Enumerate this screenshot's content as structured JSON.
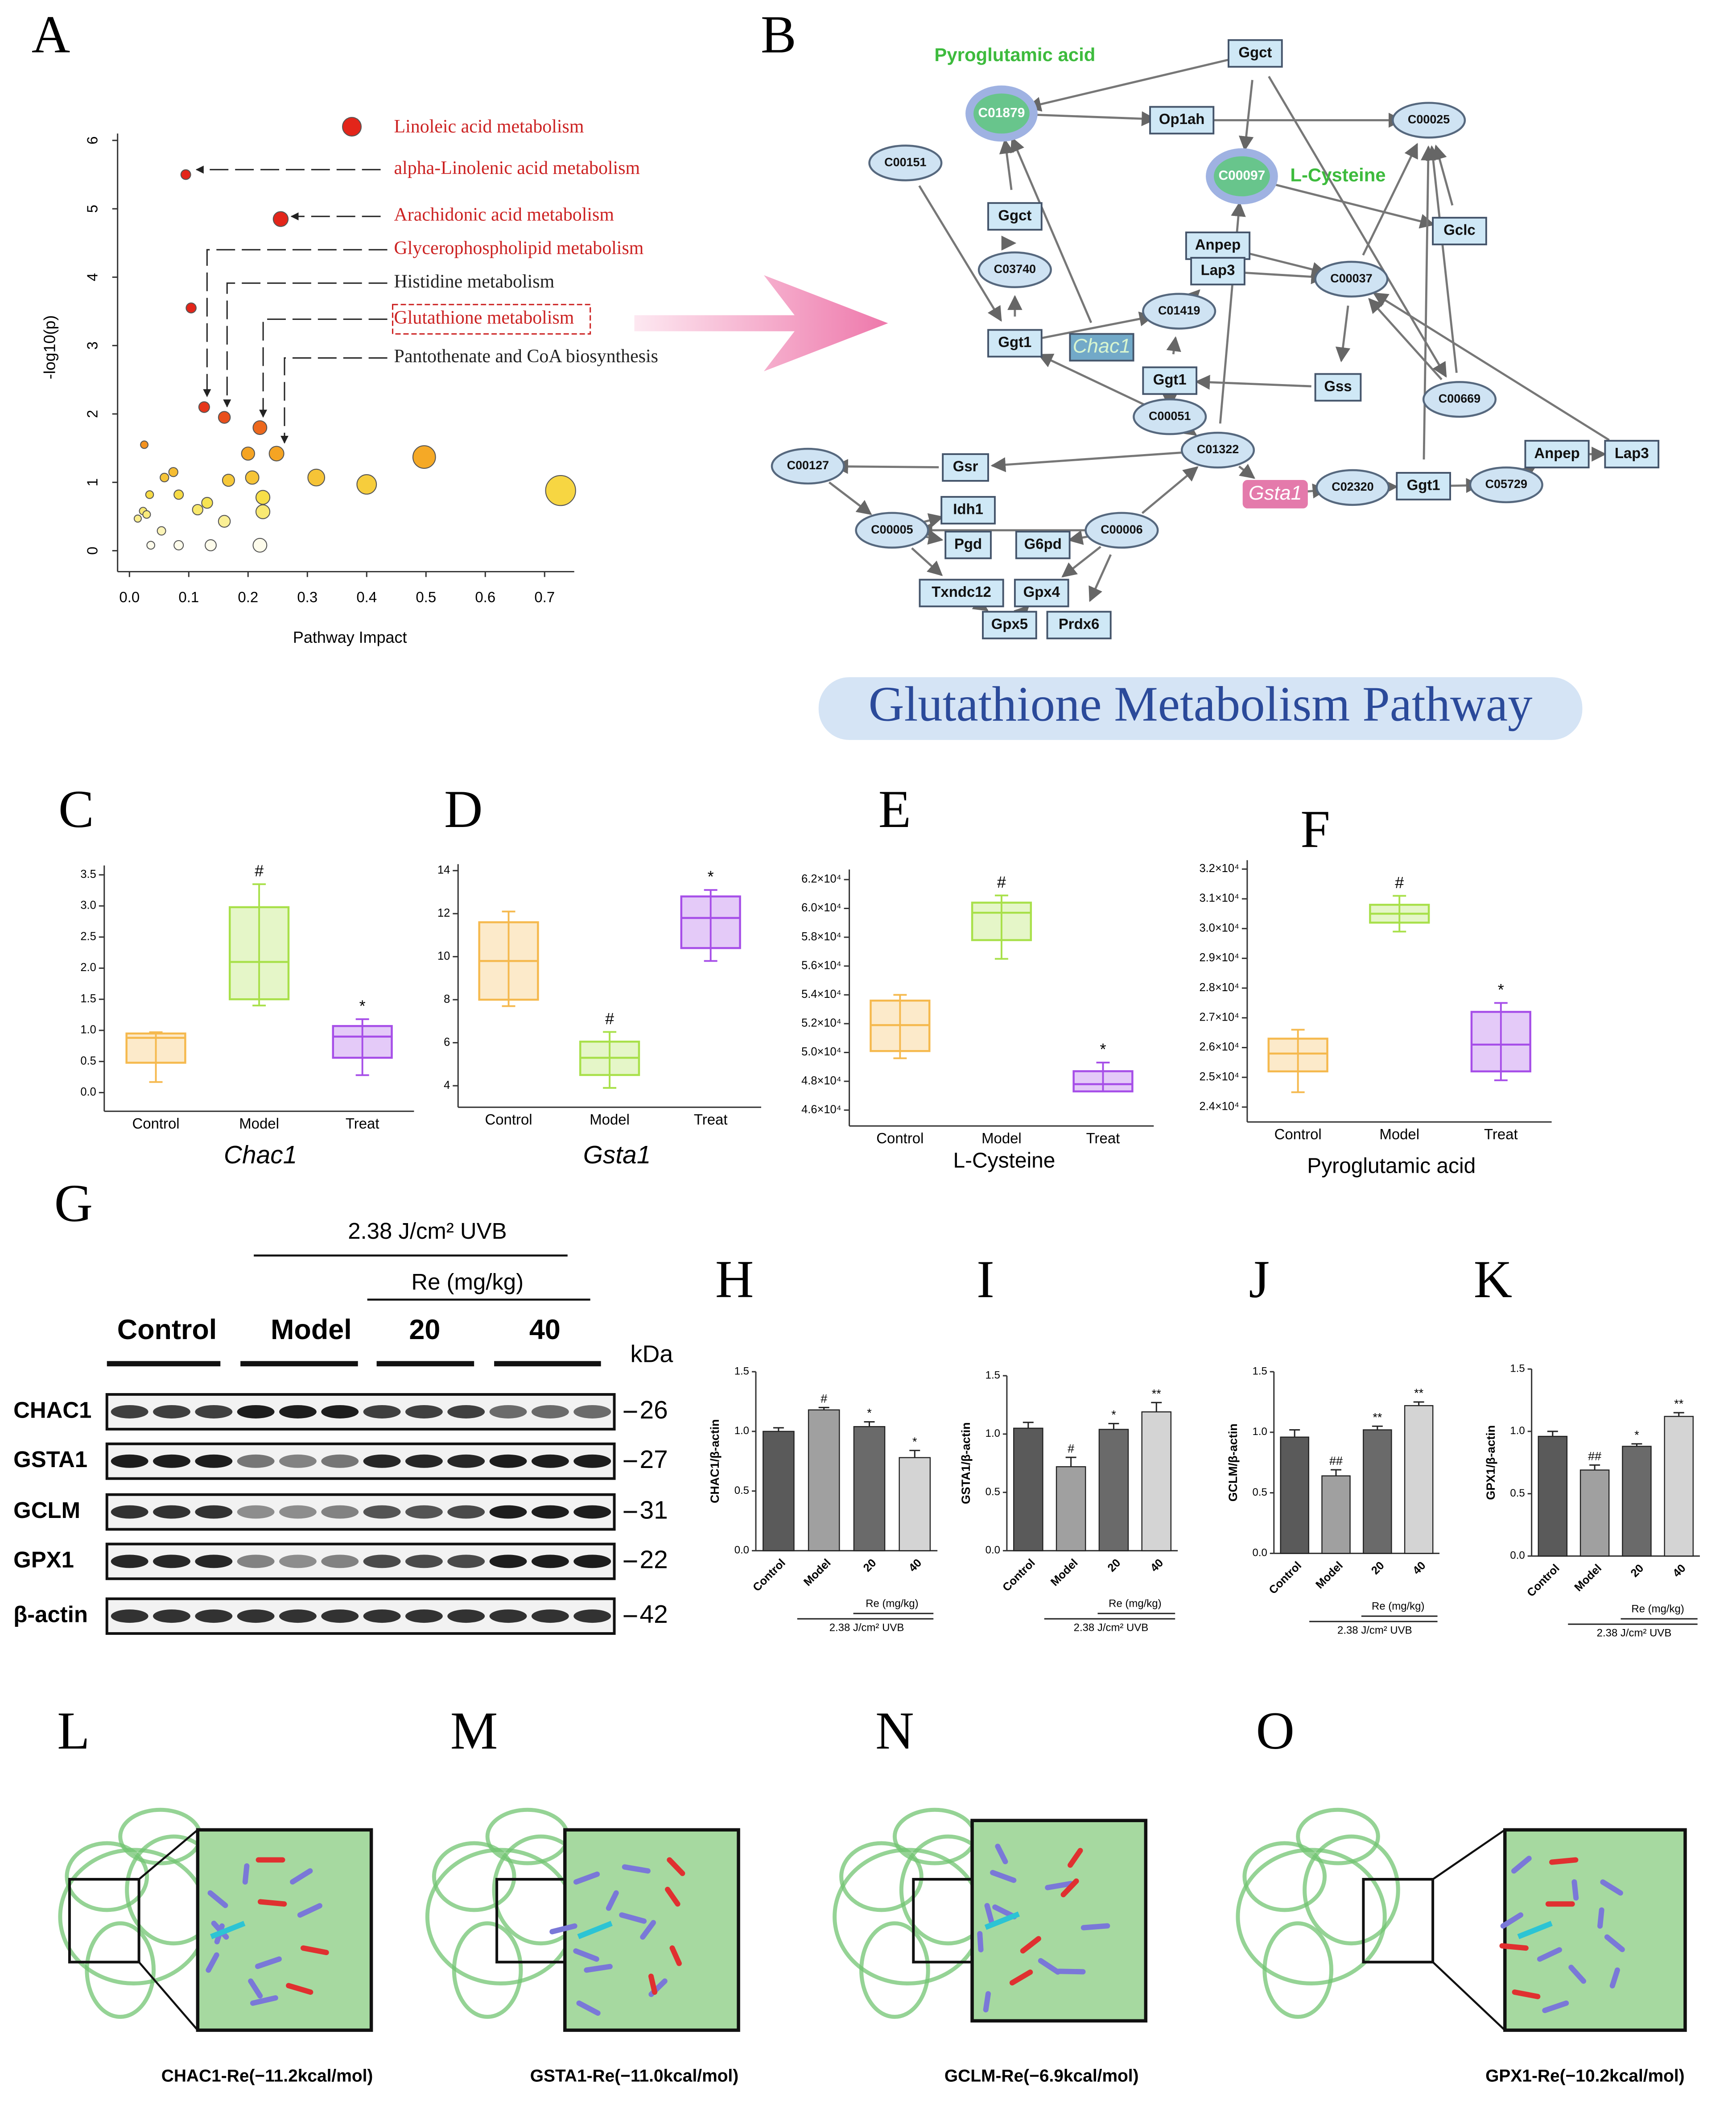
{
  "panel_labels": [
    "A",
    "B",
    "C",
    "D",
    "E",
    "F",
    "G",
    "H",
    "I",
    "J",
    "K",
    "L",
    "M",
    "N",
    "O"
  ],
  "chart_data": [
    {
      "type": "scatter",
      "xlabel": "Pathway Impact",
      "ylabel": "-log10(p)",
      "x": [
        0.375,
        0.095,
        0.255,
        0.104,
        0.126,
        0.16,
        0.22,
        0.2,
        0.248,
        0.497,
        0.025,
        0.074,
        0.059,
        0.167,
        0.207,
        0.315,
        0.4,
        0.727,
        0.034,
        0.083,
        0.131,
        0.225,
        0.225,
        0.115,
        0.023,
        0.014,
        0.029,
        0.16,
        0.054,
        0.083,
        0.036,
        0.137,
        0.22
      ],
      "y": [
        6.2,
        5.5,
        4.85,
        3.55,
        2.1,
        1.95,
        1.8,
        1.42,
        1.42,
        1.37,
        1.55,
        1.15,
        1.07,
        1.03,
        1.07,
        1.07,
        0.97,
        0.88,
        0.82,
        0.82,
        0.7,
        0.78,
        0.57,
        0.6,
        0.58,
        0.47,
        0.53,
        0.43,
        0.29,
        0.08,
        0.08,
        0.08,
        0.08
      ],
      "xlim": [
        -0.02,
        0.75
      ],
      "ylim": [
        -0.15,
        6.1
      ],
      "xticks": [
        {
          "value": 0,
          "label": "0.0"
        },
        0.1,
        0.2,
        0.3,
        0.4,
        0.5,
        0.6,
        0.7
      ],
      "yticks": [
        0,
        1,
        2,
        3,
        4,
        5,
        6
      ],
      "color_scale": [
        "#ffffff",
        "#f7e34a",
        "#f5a020",
        "#e3251a"
      ],
      "annotations": [
        {
          "text": "Linoleic acid metabolism",
          "color": "#cc2222"
        },
        {
          "text": "alpha-Linolenic acid metabolism",
          "color": "#cc2222"
        },
        {
          "text": "Arachidonic acid metabolism",
          "color": "#cc2222"
        },
        {
          "text": "Glycerophospholipid metabolism",
          "color": "#cc2222"
        },
        {
          "text": "Histidine metabolism",
          "color": "#222222"
        },
        {
          "text": "Glutathione metabolism",
          "color": "#cc2222"
        },
        {
          "text": "Pantothenate and CoA biosynthesis",
          "color": "#222222"
        }
      ]
    },
    {
      "type": "box",
      "xlabel": "Chac1",
      "xlabel_style": "italic",
      "categories": [
        "Control",
        "Model",
        "Treat"
      ],
      "stats": {
        "min": [
          0.17,
          1.4,
          0.28
        ],
        "q1": [
          0.48,
          1.5,
          0.56
        ],
        "median": [
          0.88,
          2.1,
          0.9
        ],
        "q3": [
          0.95,
          2.98,
          1.07
        ],
        "max": [
          0.97,
          3.35,
          1.18
        ]
      },
      "colors": [
        "#f5b94e",
        "#a8e04a",
        "#a64ee8"
      ],
      "significance": [
        null,
        "#",
        "*"
      ],
      "ylim": [
        -0.3,
        3.65
      ],
      "yticks": [
        {
          "value": 0,
          "label": "0.0"
        },
        0.5,
        {
          "value": 1,
          "label": "1.0"
        },
        1.5,
        {
          "value": 2,
          "label": "2.0"
        },
        2.5,
        {
          "value": 3,
          "label": "3.0"
        },
        3.5
      ]
    },
    {
      "type": "box",
      "xlabel": "Gsta1",
      "xlabel_style": "italic",
      "categories": [
        "Control",
        "Model",
        "Treat"
      ],
      "stats": {
        "min": [
          7.7,
          3.9,
          9.8
        ],
        "q1": [
          8.0,
          4.5,
          10.4
        ],
        "median": [
          9.8,
          5.3,
          11.8
        ],
        "q3": [
          11.6,
          6.05,
          12.8
        ],
        "max": [
          12.1,
          6.5,
          13.1
        ]
      },
      "colors": [
        "#f5b94e",
        "#a8e04a",
        "#a64ee8"
      ],
      "significance": [
        null,
        "#",
        "*"
      ],
      "ylim": [
        3,
        14.3
      ],
      "yticks": [
        4,
        6,
        8,
        10,
        12,
        14
      ]
    },
    {
      "type": "box",
      "xlabel": "L-Cysteine",
      "xlabel_style": "normal",
      "categories": [
        "Control",
        "Model",
        "Treat"
      ],
      "stats": {
        "min": [
          49600,
          56500,
          47300
        ],
        "q1": [
          50100,
          57800,
          47300
        ],
        "median": [
          51900,
          59700,
          47800
        ],
        "q3": [
          53600,
          60400,
          48700
        ],
        "max": [
          54000,
          60900,
          49300
        ]
      },
      "colors": [
        "#f5b94e",
        "#a8e04a",
        "#a64ee8"
      ],
      "significance": [
        null,
        "#",
        "*"
      ],
      "ylim": [
        44900,
        62700
      ],
      "yticks": [
        {
          "value": 46000,
          "label": "4.6×10⁴"
        },
        {
          "value": 48000,
          "label": "4.8×10⁴"
        },
        {
          "value": 50000,
          "label": "5.0×10⁴"
        },
        {
          "value": 52000,
          "label": "5.2×10⁴"
        },
        {
          "value": 54000,
          "label": "5.4×10⁴"
        },
        {
          "value": 56000,
          "label": "5.6×10⁴"
        },
        {
          "value": 58000,
          "label": "5.8×10⁴"
        },
        {
          "value": 60000,
          "label": "6.0×10⁴"
        },
        {
          "value": 62000,
          "label": "6.2×10⁴"
        }
      ]
    },
    {
      "type": "box",
      "xlabel": "Pyroglutamic acid",
      "xlabel_style": "normal",
      "categories": [
        "Control",
        "Model",
        "Treat"
      ],
      "stats": {
        "min": [
          24500,
          29900,
          24900
        ],
        "q1": [
          25200,
          30200,
          25200
        ],
        "median": [
          25800,
          30500,
          26100
        ],
        "q3": [
          26300,
          30800,
          27200
        ],
        "max": [
          26600,
          31100,
          27500
        ]
      },
      "colors": [
        "#f5b94e",
        "#a8e04a",
        "#a64ee8"
      ],
      "significance": [
        null,
        "#",
        "*"
      ],
      "ylim": [
        23500,
        32300
      ],
      "yticks": [
        {
          "value": 24000,
          "label": "2.4×10⁴"
        },
        {
          "value": 25000,
          "label": "2.5×10⁴"
        },
        {
          "value": 26000,
          "label": "2.6×10⁴"
        },
        {
          "value": 27000,
          "label": "2.7×10⁴"
        },
        {
          "value": 28000,
          "label": "2.8×10⁴"
        },
        {
          "value": 29000,
          "label": "2.9×10⁴"
        },
        {
          "value": 30000,
          "label": "3.0×10⁴"
        },
        {
          "value": 31000,
          "label": "3.1×10⁴"
        },
        {
          "value": 32000,
          "label": "3.2×10⁴"
        }
      ]
    },
    {
      "type": "bar",
      "ylabel": "CHAC1/β-actin",
      "categories": [
        "Control",
        "Model",
        "20",
        "40"
      ],
      "values": [
        1.0,
        1.18,
        1.04,
        0.78
      ],
      "errors": [
        0.03,
        0.02,
        0.04,
        0.06
      ],
      "significance": [
        null,
        "#",
        "*",
        "*"
      ],
      "colors": [
        "#5a5a5a",
        "#a0a0a0",
        "#6a6a6a",
        "#d4d4d4"
      ],
      "group_labels": [
        "Re (mg/kg)",
        "2.38 J/cm² UVB"
      ],
      "ylim": [
        0,
        1.5
      ],
      "yticks": [
        {
          "value": 0,
          "label": "0.0"
        },
        0.5,
        {
          "value": 1,
          "label": "1.0"
        },
        1.5
      ]
    },
    {
      "type": "bar",
      "ylabel": "GSTA1/β-actin",
      "categories": [
        "Control",
        "Model",
        "20",
        "40"
      ],
      "values": [
        1.05,
        0.72,
        1.04,
        1.19
      ],
      "errors": [
        0.05,
        0.08,
        0.05,
        0.08
      ],
      "significance": [
        null,
        "#",
        "*",
        "**"
      ],
      "colors": [
        "#5a5a5a",
        "#a0a0a0",
        "#6a6a6a",
        "#d4d4d4"
      ],
      "group_labels": [
        "Re (mg/kg)",
        "2.38 J/cm² UVB"
      ],
      "ylim": [
        0,
        1.5
      ],
      "yticks": [
        {
          "value": 0,
          "label": "0.0"
        },
        0.5,
        {
          "value": 1,
          "label": "1.0"
        },
        1.5
      ]
    },
    {
      "type": "bar",
      "ylabel": "GCLM/β-actin",
      "categories": [
        "Control",
        "Model",
        "20",
        "40"
      ],
      "values": [
        0.96,
        0.64,
        1.02,
        1.22
      ],
      "errors": [
        0.06,
        0.05,
        0.03,
        0.03
      ],
      "significance": [
        null,
        "##",
        "**",
        "**"
      ],
      "colors": [
        "#5a5a5a",
        "#a0a0a0",
        "#6a6a6a",
        "#d4d4d4"
      ],
      "group_labels": [
        "Re (mg/kg)",
        "2.38 J/cm² UVB"
      ],
      "ylim": [
        0,
        1.5
      ],
      "yticks": [
        {
          "value": 0,
          "label": "0.0"
        },
        0.5,
        {
          "value": 1,
          "label": "1.0"
        },
        1.5
      ]
    },
    {
      "type": "bar",
      "ylabel": "GPX1/β-actin",
      "categories": [
        "Control",
        "Model",
        "20",
        "40"
      ],
      "values": [
        0.96,
        0.69,
        0.88,
        1.12
      ],
      "errors": [
        0.04,
        0.04,
        0.02,
        0.03
      ],
      "significance": [
        null,
        "##",
        "*",
        "**"
      ],
      "colors": [
        "#5a5a5a",
        "#a0a0a0",
        "#6a6a6a",
        "#d4d4d4"
      ],
      "group_labels": [
        "Re (mg/kg)",
        "2.38 J/cm² UVB"
      ],
      "ylim": [
        0,
        1.5
      ],
      "yticks": [
        {
          "value": 0,
          "label": "0.0"
        },
        0.5,
        {
          "value": 1,
          "label": "1.0"
        },
        1.5
      ]
    }
  ],
  "pathway": {
    "title": "Glutathione Metabolism Pathway",
    "labels": [
      "Pyroglutamic acid",
      "L-Cysteine"
    ],
    "nodes": [
      "C01879",
      "Ggct",
      "Op1ah",
      "C00025",
      "C00151",
      "C00097",
      "Gclc",
      "Ggct",
      "C03740",
      "Anpep",
      "Lap3",
      "C00037",
      "Ggt1",
      "Chac1",
      "C01419",
      "Ggt1",
      "Gss",
      "C00669",
      "C00051",
      "C01322",
      "C00127",
      "Gsr",
      "Gsta1",
      "C02320",
      "Ggt1",
      "C05729",
      "Anpep",
      "Lap3",
      "Idh1",
      "C00005",
      "C00006",
      "Pgd",
      "G6pd",
      "Txndc12",
      "Gpx4",
      "Gpx5",
      "Prdx6"
    ]
  },
  "blot": {
    "treatment": "2.38 J/cm²  UVB",
    "dose": "Re (mg/kg)",
    "groups": [
      "Control",
      "Model",
      "20",
      "40"
    ],
    "unit": "kDa",
    "rows": [
      {
        "protein": "CHAC1",
        "size": 26
      },
      {
        "protein": "GSTA1",
        "size": 27
      },
      {
        "protein": "GCLM",
        "size": 31
      },
      {
        "protein": "GPX1",
        "size": 22
      },
      {
        "protein": "β-actin",
        "size": 42
      }
    ]
  },
  "docking": [
    "CHAC1-Re(−11.2kcal/mol)",
    "GSTA1-Re(−11.0kcal/mol)",
    "GCLM-Re(−6.9kcal/mol)",
    "GPX1-Re(−10.2kcal/mol)"
  ]
}
